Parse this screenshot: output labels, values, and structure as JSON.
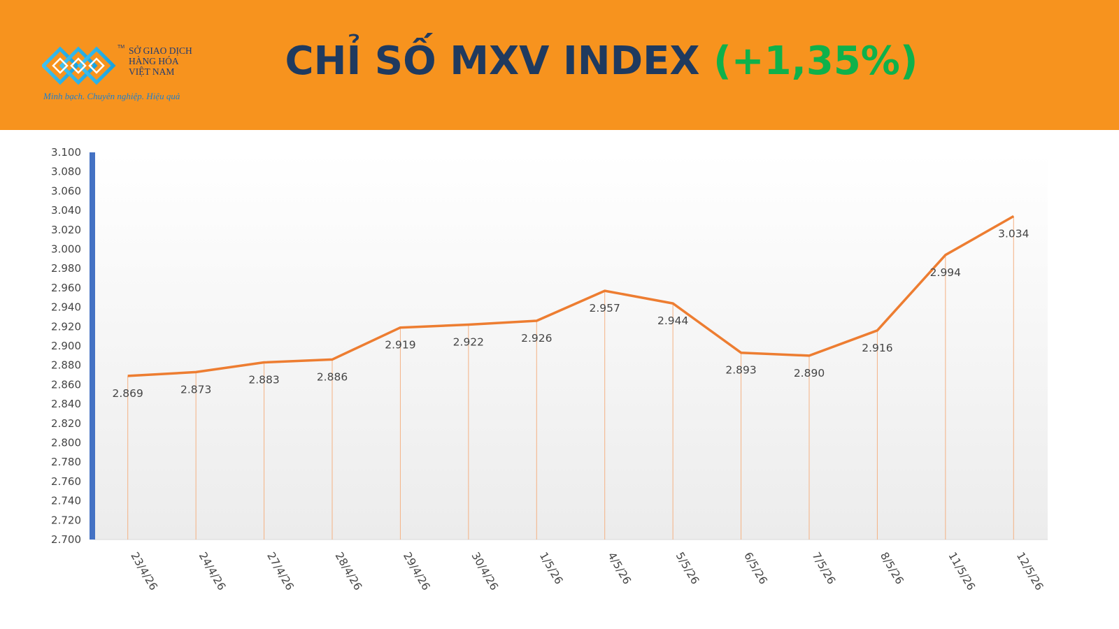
{
  "header": {
    "background": "#F7931E",
    "logo": {
      "line1": "SỞ GIAO DỊCH",
      "line2": "HÀNG HÓA",
      "line3": "VIỆT NAM",
      "trademark": "TM",
      "slogan": "Minh bạch. Chuyên nghiệp. Hiệu quả"
    },
    "title_main": "CHỈ SỐ MXV INDEX",
    "title_change": "(+1,35%)"
  },
  "chart_data": {
    "type": "line",
    "categories": [
      "23/4/26",
      "24/4/26",
      "27/4/26",
      "28/4/26",
      "29/4/26",
      "30/4/26",
      "1/5/26",
      "4/5/26",
      "5/5/26",
      "6/5/26",
      "7/5/26",
      "8/5/26",
      "11/5/26",
      "12/5/26"
    ],
    "values": [
      2869,
      2873,
      2883,
      2886,
      2919,
      2922,
      2926,
      2957,
      2944,
      2893,
      2890,
      2916,
      2994,
      3034
    ],
    "data_labels": [
      "2.869",
      "2.873",
      "2.883",
      "2.886",
      "2.919",
      "2.922",
      "2.926",
      "2.957",
      "2.944",
      "2.893",
      "2.890",
      "2.916",
      "2.994",
      "3.034"
    ],
    "ylim": [
      2700,
      3100
    ],
    "y_ticks": [
      "2.700",
      "2.720",
      "2.740",
      "2.760",
      "2.780",
      "2.800",
      "2.820",
      "2.840",
      "2.860",
      "2.880",
      "2.900",
      "2.920",
      "2.940",
      "2.960",
      "2.980",
      "3.000",
      "3.020",
      "3.040",
      "3.060",
      "3.080",
      "3.100"
    ],
    "drop_lines": true,
    "grid": false,
    "colors": {
      "line": "#ED7D31",
      "drop_line": "#F4B183",
      "axis_bar": "#4472C4"
    }
  }
}
